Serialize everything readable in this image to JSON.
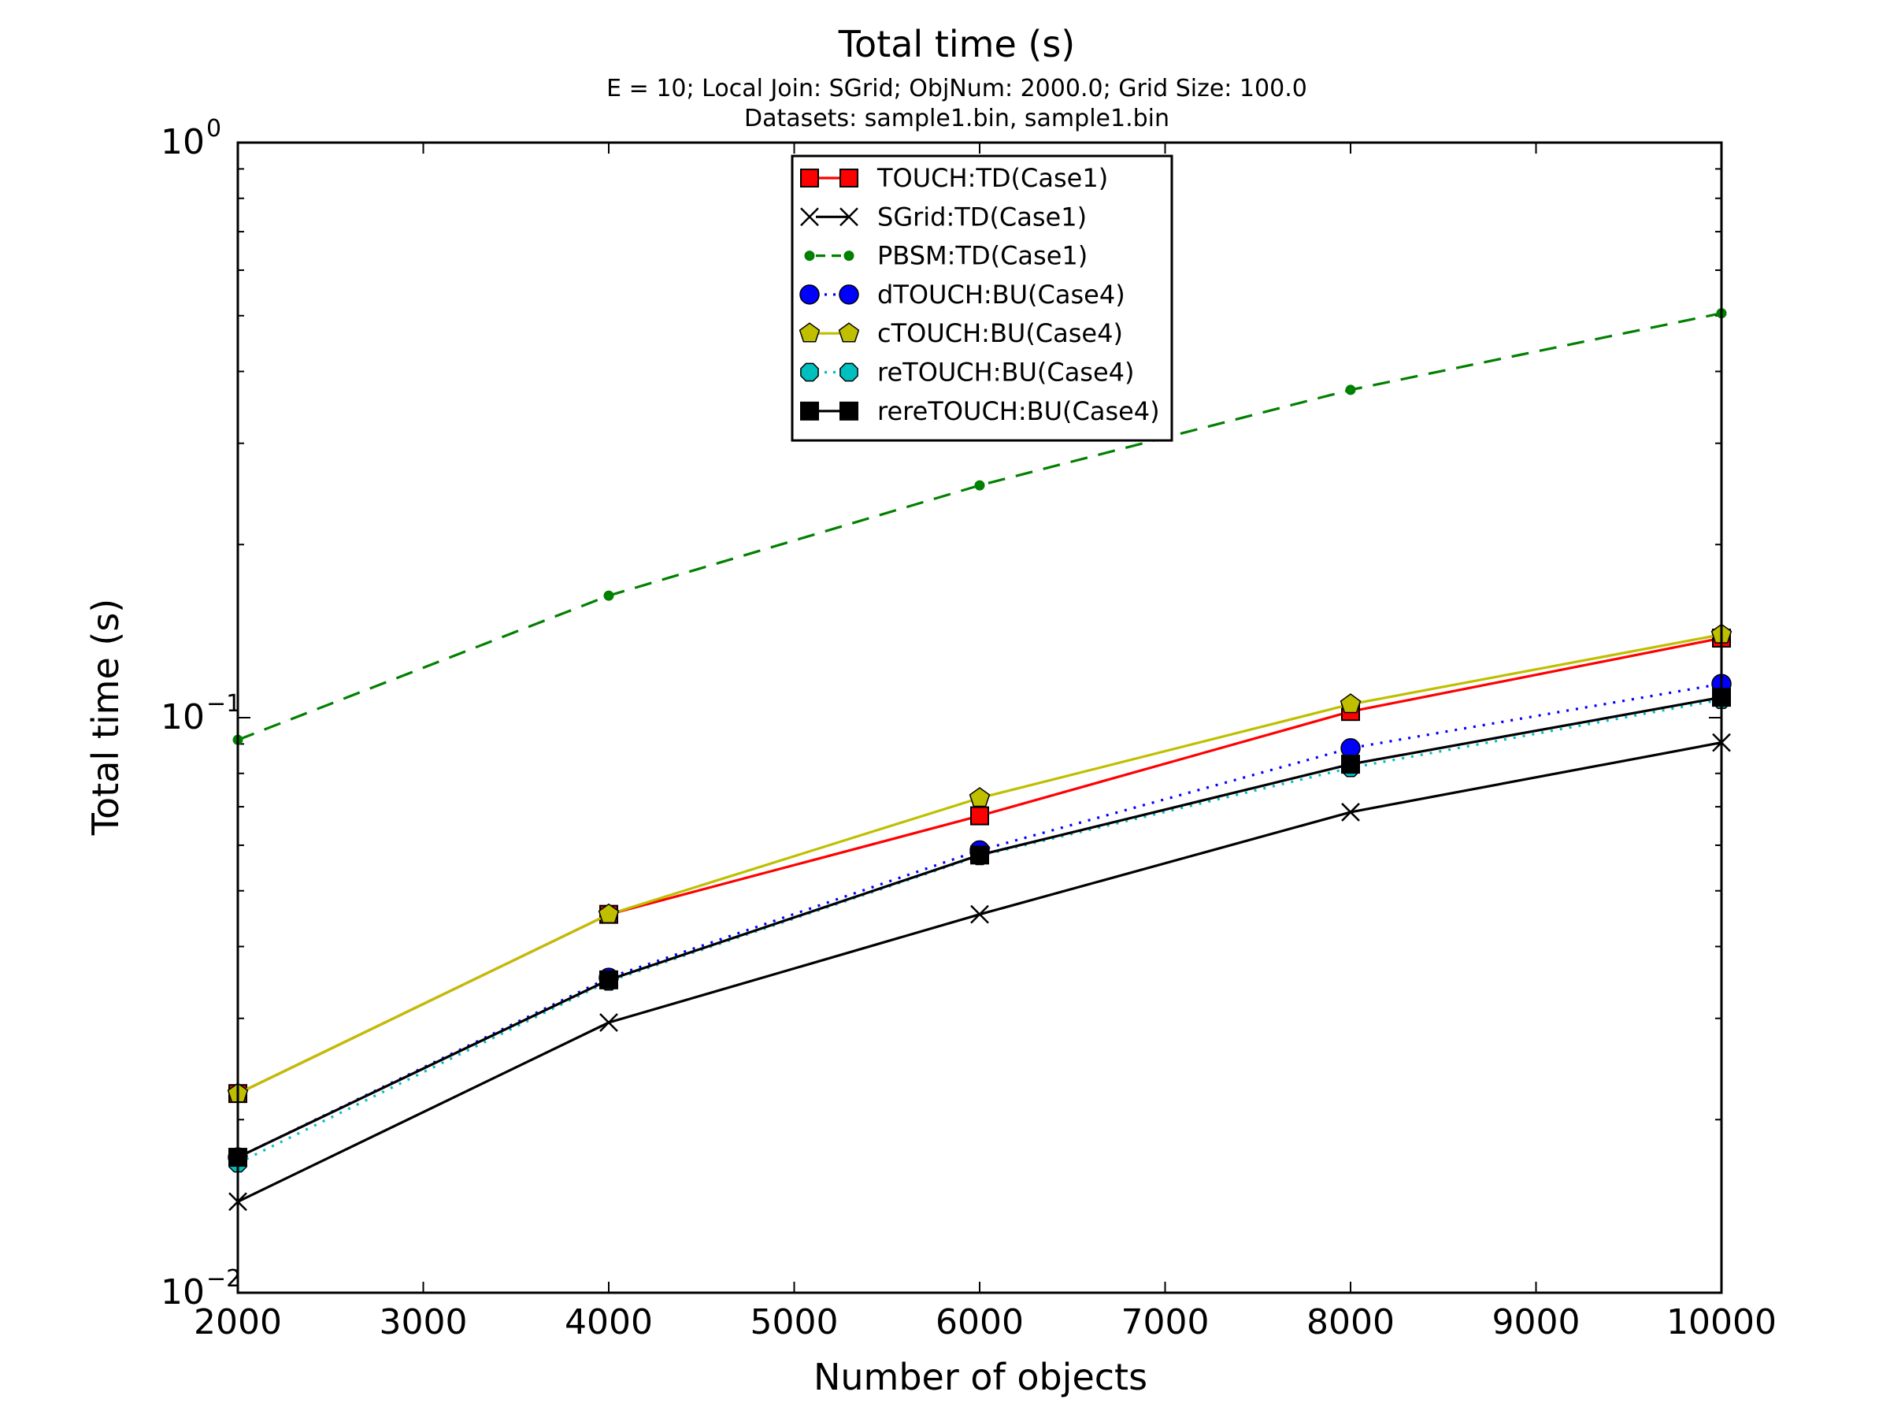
{
  "chart_data": {
    "type": "line",
    "title": "Total time (s)",
    "subtitle_lines": [
      "E = 10; Local Join: SGrid; ObjNum: 2000.0; Grid Size: 100.0",
      "Datasets: sample1.bin, sample1.bin"
    ],
    "xlabel": "Number of objects",
    "ylabel": "Total time (s)",
    "xlim": [
      2000,
      10000
    ],
    "ylim": [
      0.01,
      1
    ],
    "yscale": "log",
    "x_ticks": [
      "2000",
      "3000",
      "4000",
      "5000",
      "6000",
      "7000",
      "8000",
      "9000",
      "10000"
    ],
    "y_ticks": [
      {
        "base": "10",
        "exp": "0",
        "value": 1
      },
      {
        "base": "10",
        "exp": "−1",
        "value": 0.1
      },
      {
        "base": "10",
        "exp": "−2",
        "value": 0.01
      }
    ],
    "grid": false,
    "legend_position": "top-center",
    "x": [
      2000,
      4000,
      6000,
      8000,
      10000
    ],
    "series": [
      {
        "name": "TOUCH:TD(Case1)",
        "values": [
          0.0222,
          0.0455,
          0.0675,
          0.1025,
          0.1375
        ],
        "color": "#ff0000",
        "marker": "square",
        "marker_fill": "#ff0000",
        "dash": "solid"
      },
      {
        "name": "SGrid:TD(Case1)",
        "values": [
          0.0144,
          0.0295,
          0.0455,
          0.0685,
          0.0905
        ],
        "color": "#000000",
        "marker": "x",
        "marker_fill": "none",
        "dash": "solid"
      },
      {
        "name": "PBSM:TD(Case1)",
        "values": [
          0.0915,
          0.163,
          0.2535,
          0.3715,
          0.505
        ],
        "color": "#008000",
        "marker": "dot",
        "marker_fill": "#008000",
        "dash": "dashed"
      },
      {
        "name": "dTOUCH:BU(Case4)",
        "values": [
          0.0172,
          0.0353,
          0.0588,
          0.0885,
          0.1145
        ],
        "color": "#0000ff",
        "marker": "circle",
        "marker_fill": "#0000ff",
        "dash": "dotted"
      },
      {
        "name": "cTOUCH:BU(Case4)",
        "values": [
          0.0222,
          0.0455,
          0.0725,
          0.1055,
          0.1395
        ],
        "color": "#bfbf00",
        "marker": "pentagon",
        "marker_fill": "#bfbf00",
        "dash": "solid"
      },
      {
        "name": "reTOUCH:BU(Case4)",
        "values": [
          0.0168,
          0.0348,
          0.0575,
          0.0818,
          0.1075
        ],
        "color": "#00bfbf",
        "marker": "octagon",
        "marker_fill": "#00bfbf",
        "dash": "dotted"
      },
      {
        "name": "rereTOUCH:BU(Case4)",
        "values": [
          0.0172,
          0.035,
          0.0577,
          0.083,
          0.1085
        ],
        "color": "#000000",
        "marker": "square",
        "marker_fill": "#000000",
        "dash": "solid"
      }
    ]
  }
}
